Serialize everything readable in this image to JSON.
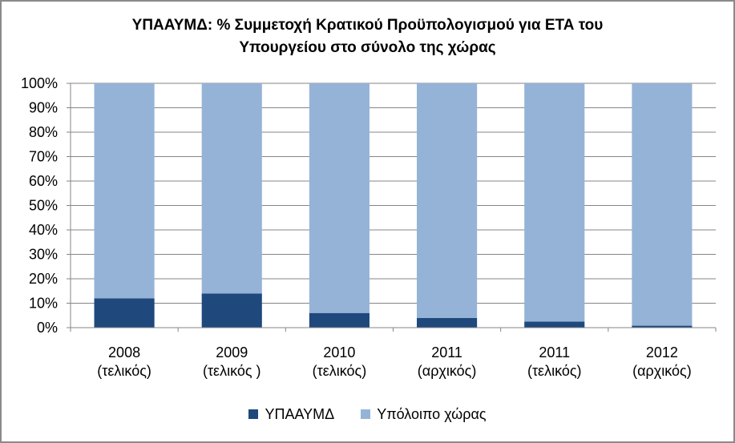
{
  "chart_data": {
    "type": "bar",
    "stacked": true,
    "title_lines": [
      "ΥΠΑΑΥΜΔ: % Συμμετοχή Κρατικού Προϋπολογισμού για ΕΤΑ του",
      "Υπουργείου στο σύνολο της χώρας"
    ],
    "categories": [
      [
        "2008",
        "(τελικός)"
      ],
      [
        "2009",
        "(τελικός )"
      ],
      [
        "2010",
        "(τελικός)"
      ],
      [
        "2011",
        "(αρχικός)"
      ],
      [
        "2011",
        "(τελικός)"
      ],
      [
        "2012",
        "(αρχικός)"
      ]
    ],
    "series": [
      {
        "name": "ΥΠΑΑΥΜΔ",
        "color": "#1f497d",
        "values": [
          12,
          14,
          6,
          4,
          2.5,
          0.8
        ]
      },
      {
        "name": "Υπόλοιπο χώρας",
        "color": "#95b3d7",
        "values": [
          88,
          86,
          94,
          96,
          97.5,
          99.2
        ]
      }
    ],
    "ylim": [
      0,
      100
    ],
    "yticks": [
      "0%",
      "10%",
      "20%",
      "30%",
      "40%",
      "50%",
      "60%",
      "70%",
      "80%",
      "90%",
      "100%"
    ],
    "grid": true,
    "legend_position": "bottom"
  }
}
